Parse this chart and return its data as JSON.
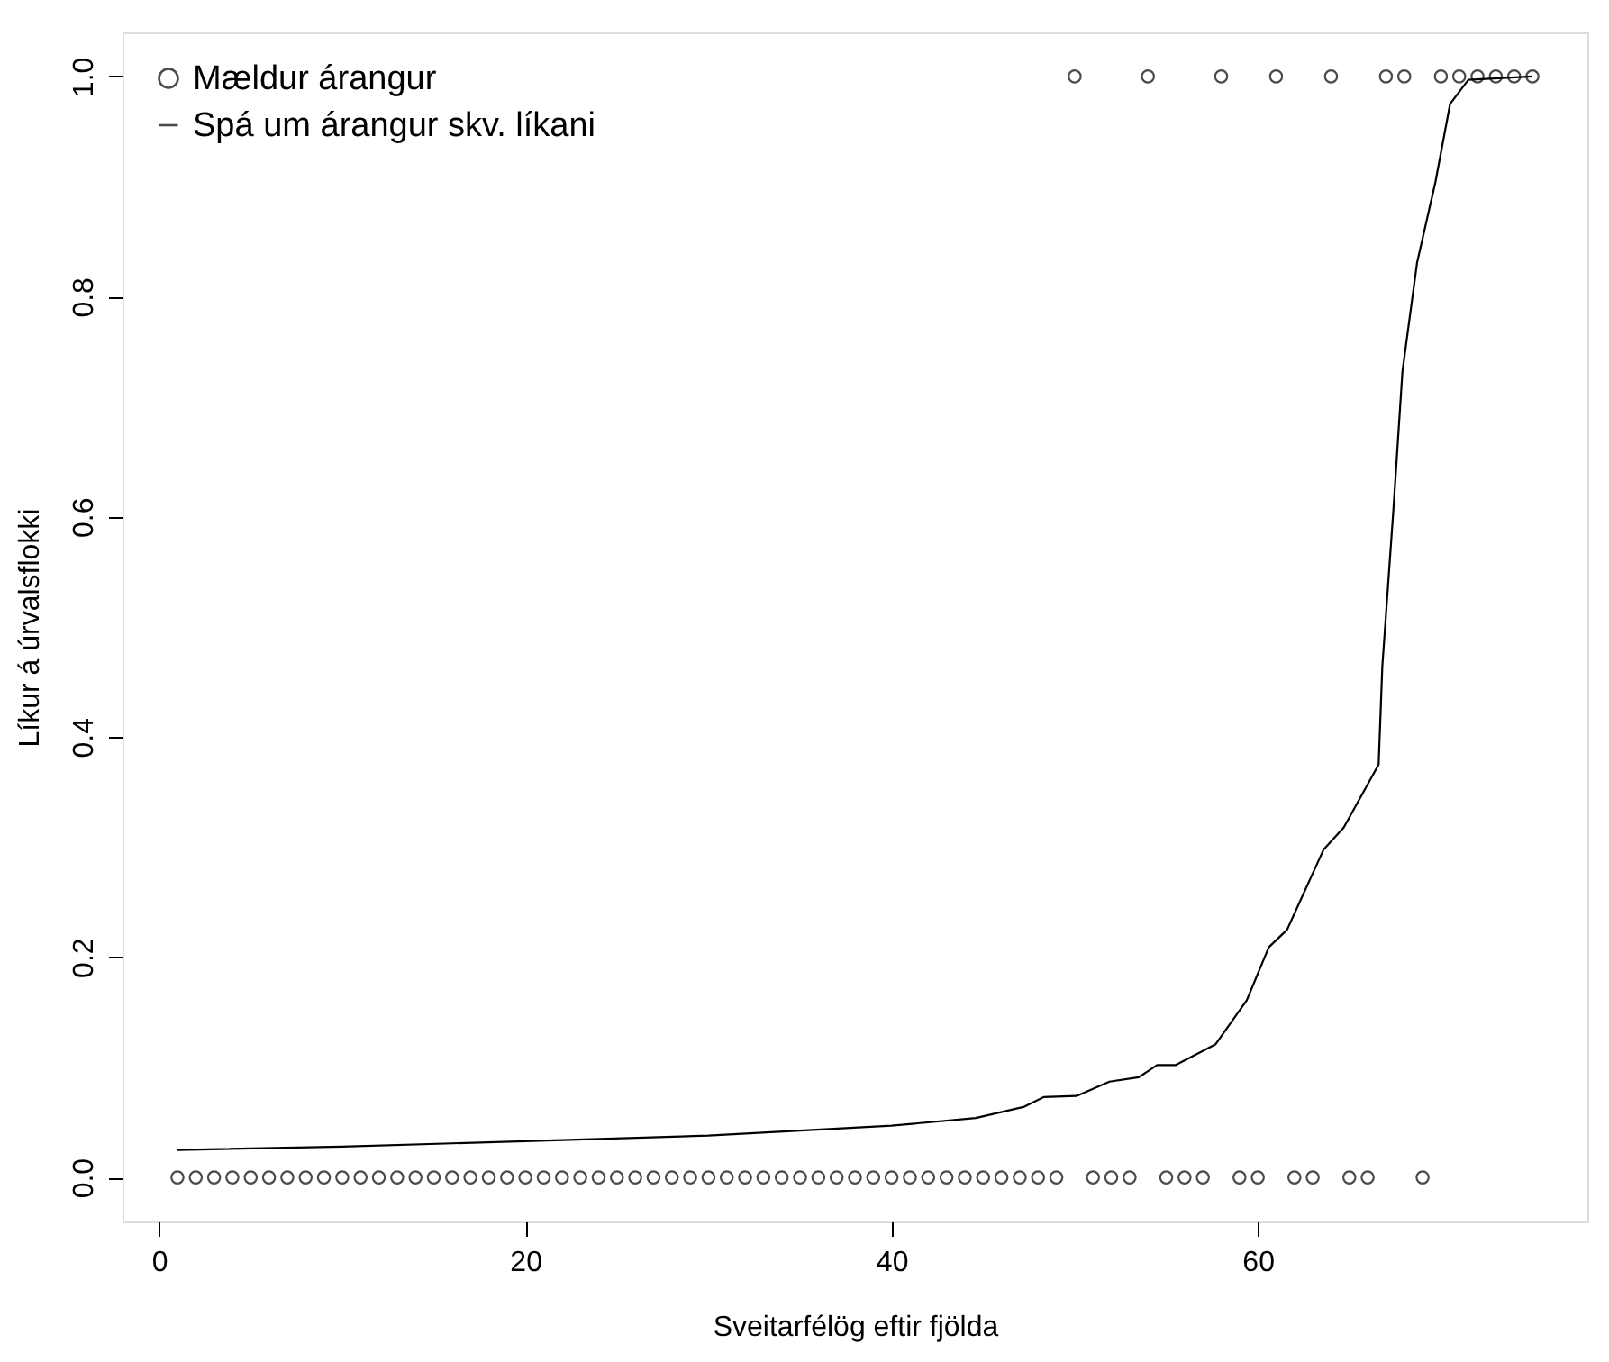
{
  "chart_data": {
    "type": "scatter",
    "xlabel": "Sveitarfélög eftir fjölda",
    "ylabel": "Líkur á úrvalsflokki",
    "xlim": [
      -2,
      78
    ],
    "xticks": [
      0,
      20,
      40,
      60
    ],
    "ylim": [
      -0.04,
      1.04
    ],
    "yticks": [
      {
        "value": 0,
        "label": "0.0"
      },
      0.2,
      0.4,
      0.6,
      0.8,
      {
        "value": 1,
        "label": "1.0"
      }
    ],
    "grid": false,
    "legend": "top left",
    "series": [
      {
        "name": "Mældur árangur",
        "marker": "circle",
        "color": "#000000",
        "x": [
          1,
          2,
          3,
          4,
          5,
          6,
          7,
          8,
          9,
          10,
          11,
          12,
          13,
          14,
          15,
          16,
          17,
          18,
          19,
          20,
          21,
          22,
          23,
          24,
          25,
          26,
          27,
          28,
          29,
          30,
          31,
          32,
          33,
          34,
          35,
          36,
          37,
          38,
          39,
          40,
          41,
          42,
          43,
          44,
          45,
          46,
          47,
          48,
          49,
          50,
          51,
          52,
          53,
          54,
          55,
          56,
          57,
          58,
          59,
          60,
          61,
          62,
          63,
          64,
          65,
          66,
          67,
          68,
          69,
          70,
          71,
          72,
          73,
          74,
          75
        ],
        "values": [
          0,
          0,
          0,
          0,
          0,
          0,
          0,
          0,
          0,
          0,
          0,
          0,
          0,
          0,
          0,
          0,
          0,
          0,
          0,
          0,
          0,
          0,
          0,
          0,
          0,
          0,
          0,
          0,
          0,
          0,
          0,
          0,
          0,
          0,
          0,
          0,
          0,
          0,
          0,
          0,
          0,
          0,
          0,
          0,
          0,
          0,
          0,
          0,
          0,
          1,
          0,
          0,
          0,
          1,
          0,
          0,
          0,
          1,
          0,
          0,
          1,
          0,
          0,
          1,
          0,
          0,
          1,
          1,
          0,
          1,
          1,
          1,
          1,
          1,
          1
        ]
      },
      {
        "name": "Spá um árangur skv. líkani",
        "type": "line",
        "line_style": "solid",
        "color": "#000000",
        "x": [
          1,
          10,
          20,
          30,
          40,
          44.6,
          47.2,
          48.3,
          50.1,
          51.9,
          53.5,
          54.5,
          55.5,
          57.7,
          59.4,
          60.6,
          61.6,
          63.6,
          64.7,
          66.6,
          66.8,
          67.4,
          67.9,
          68.7,
          69.7,
          70.5,
          71.5,
          75
        ],
        "values": [
          0.025,
          0.028,
          0.033,
          0.038,
          0.047,
          0.054,
          0.064,
          0.073,
          0.074,
          0.087,
          0.091,
          0.102,
          0.102,
          0.121,
          0.161,
          0.209,
          0.225,
          0.298,
          0.318,
          0.375,
          0.464,
          0.605,
          0.732,
          0.831,
          0.904,
          0.975,
          0.997,
          1.0
        ]
      }
    ]
  }
}
